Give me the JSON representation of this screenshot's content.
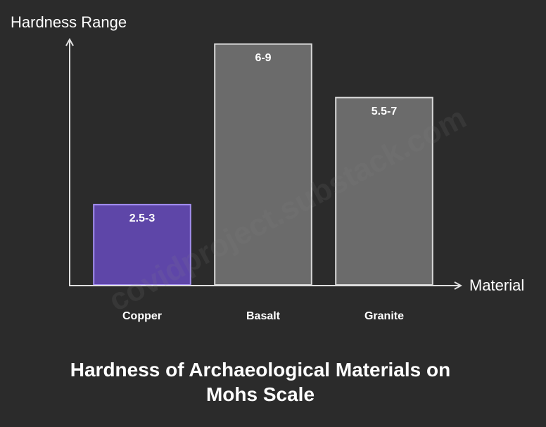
{
  "chart_data": {
    "type": "bar",
    "title": "Hardness of Archaeological Materials on Mohs Scale",
    "x_label": "Material",
    "y_label": "Hardness Range",
    "categories": [
      "Copper",
      "Basalt",
      "Granite"
    ],
    "values": [
      3,
      9,
      7
    ],
    "value_labels": [
      "2.5-3",
      "6-9",
      "5.5-7"
    ],
    "colors": [
      "#5e46a8",
      "#6b6b6b",
      "#6b6b6b"
    ],
    "ylim": [
      0,
      9.2
    ],
    "watermark": "covidproject.substack.com"
  }
}
